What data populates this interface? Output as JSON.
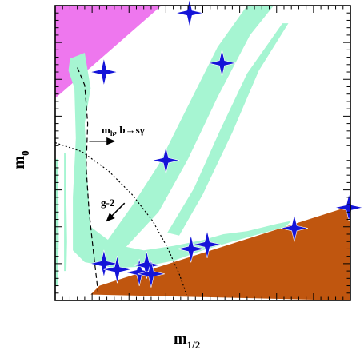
{
  "chart_data": {
    "type": "region",
    "xlabel": "m",
    "xlabel_sub": "1/2",
    "ylabel": "m",
    "ylabel_sub": "0",
    "xlim": [
      0,
      1
    ],
    "ylim": [
      0,
      1
    ],
    "grid": false,
    "colors": {
      "excluded_top_left": "#ee77ee",
      "excluded_bottom_right": "#c0560f",
      "allowed_strips": "#a6f5d2",
      "benchmark_stars": "#1414d8"
    },
    "annotations": {
      "constraint_label_main": "m",
      "constraint_label_sub": "h",
      "constraint_label_rest": ", b→sγ",
      "g2_label": "g-2"
    },
    "benchmark_points": [
      {
        "x": 0.455,
        "y": 0.975
      },
      {
        "x": 0.165,
        "y": 0.775
      },
      {
        "x": 0.565,
        "y": 0.805
      },
      {
        "x": 0.375,
        "y": 0.475
      },
      {
        "x": 0.995,
        "y": 0.315
      },
      {
        "x": 0.81,
        "y": 0.245
      },
      {
        "x": 0.515,
        "y": 0.19
      },
      {
        "x": 0.46,
        "y": 0.175
      },
      {
        "x": 0.165,
        "y": 0.125
      },
      {
        "x": 0.21,
        "y": 0.105
      },
      {
        "x": 0.285,
        "y": 0.095
      },
      {
        "x": 0.31,
        "y": 0.12
      },
      {
        "x": 0.325,
        "y": 0.09
      }
    ],
    "excluded_top_left": [
      [
        0,
        1
      ],
      [
        0.36,
        1
      ],
      [
        0.005,
        0.69
      ],
      [
        0,
        0.69
      ]
    ],
    "excluded_bottom_right": [
      [
        0.12,
        0.02
      ],
      [
        0.15,
        0.05
      ],
      [
        1,
        0.32
      ],
      [
        1,
        0
      ]
    ],
    "strips": [
      [
        [
          0.65,
          1
        ],
        [
          0.74,
          1
        ],
        [
          0.66,
          0.9
        ],
        [
          0.55,
          0.69
        ],
        [
          0.45,
          0.48
        ],
        [
          0.35,
          0.3
        ],
        [
          0.22,
          0.16
        ],
        [
          0.16,
          0.18
        ],
        [
          0.26,
          0.32
        ],
        [
          0.35,
          0.46
        ],
        [
          0.46,
          0.68
        ],
        [
          0.55,
          0.86
        ]
      ],
      [
        [
          0.77,
          0.94
        ],
        [
          0.79,
          0.94
        ],
        [
          0.69,
          0.78
        ],
        [
          0.6,
          0.57
        ],
        [
          0.5,
          0.36
        ],
        [
          0.42,
          0.22
        ],
        [
          0.38,
          0.23
        ],
        [
          0.47,
          0.38
        ],
        [
          0.56,
          0.58
        ],
        [
          0.65,
          0.77
        ]
      ],
      [
        [
          0.0,
          0.48
        ],
        [
          0.01,
          0.48
        ],
        [
          0.012,
          0.2
        ],
        [
          0.008,
          0.05
        ],
        [
          0.0,
          0.05
        ]
      ],
      [
        [
          0.05,
          0.82
        ],
        [
          0.1,
          0.84
        ],
        [
          0.12,
          0.72
        ],
        [
          0.1,
          0.6
        ],
        [
          0.11,
          0.4
        ],
        [
          0.12,
          0.25
        ],
        [
          0.2,
          0.19
        ],
        [
          0.3,
          0.17
        ],
        [
          0.4,
          0.185
        ],
        [
          0.5,
          0.205
        ],
        [
          0.57,
          0.225
        ],
        [
          0.65,
          0.235
        ],
        [
          0.75,
          0.26
        ],
        [
          0.8,
          0.27
        ],
        [
          0.78,
          0.25
        ],
        [
          0.6,
          0.2
        ],
        [
          0.5,
          0.17
        ],
        [
          0.4,
          0.135
        ],
        [
          0.3,
          0.115
        ],
        [
          0.2,
          0.11
        ],
        [
          0.1,
          0.13
        ],
        [
          0.06,
          0.17
        ],
        [
          0.06,
          0.35
        ],
        [
          0.07,
          0.55
        ],
        [
          0.065,
          0.72
        ],
        [
          0.045,
          0.78
        ]
      ],
      [
        [
          0.03,
          0.5
        ],
        [
          0.035,
          0.5
        ],
        [
          0.04,
          0.2
        ],
        [
          0.038,
          0.1
        ],
        [
          0.03,
          0.1
        ]
      ]
    ],
    "higgs_bsg_boundary": [
      [
        0.075,
        0.79
      ],
      [
        0.1,
        0.73
      ],
      [
        0.11,
        0.6
      ],
      [
        0.105,
        0.45
      ],
      [
        0.115,
        0.3
      ],
      [
        0.13,
        0.16
      ],
      [
        0.145,
        0.03
      ]
    ],
    "g2_boundary": [
      [
        0,
        0.535
      ],
      [
        0.09,
        0.505
      ],
      [
        0.18,
        0.44
      ],
      [
        0.26,
        0.36
      ],
      [
        0.33,
        0.27
      ],
      [
        0.38,
        0.18
      ],
      [
        0.42,
        0.09
      ],
      [
        0.445,
        0.02
      ]
    ],
    "arrows": [
      {
        "from": [
          0.115,
          0.54
        ],
        "to": [
          0.2,
          0.54
        ]
      },
      {
        "from": [
          0.235,
          0.33
        ],
        "to": [
          0.175,
          0.27
        ]
      }
    ]
  }
}
